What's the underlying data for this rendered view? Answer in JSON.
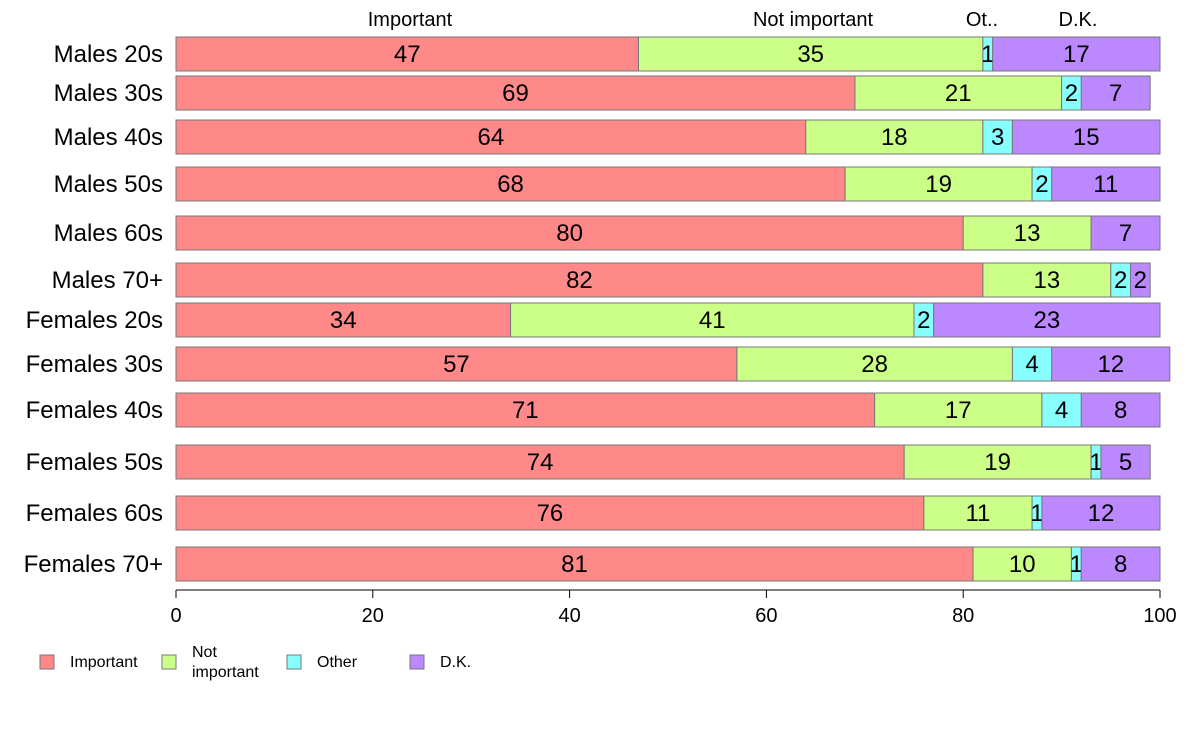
{
  "chart_data": {
    "type": "bar",
    "orientation": "horizontal",
    "stacked": true,
    "categories": [
      "Males 20s",
      "Males 30s",
      "Males 40s",
      "Males 50s",
      "Males 60s",
      "Males 70+",
      "Females 20s",
      "Females 30s",
      "Females 40s",
      "Females 50s",
      "Females 60s",
      "Females 70+"
    ],
    "series": [
      {
        "name": "Important",
        "color": "#ff8888",
        "values": [
          47,
          69,
          64,
          68,
          80,
          82,
          34,
          57,
          71,
          74,
          76,
          81
        ]
      },
      {
        "name": "Not important",
        "color": "#ccff88",
        "values": [
          35,
          21,
          18,
          19,
          13,
          13,
          41,
          28,
          17,
          19,
          11,
          10
        ]
      },
      {
        "name": "Other",
        "color": "#88ffff",
        "values": [
          1,
          2,
          3,
          2,
          0,
          2,
          2,
          4,
          4,
          1,
          1,
          1
        ]
      },
      {
        "name": "D.K.",
        "color": "#bb88ff",
        "values": [
          17,
          7,
          15,
          11,
          7,
          2,
          23,
          12,
          8,
          5,
          12,
          8
        ]
      }
    ],
    "top_labels": [
      "Important",
      "Not important",
      "Ot..",
      "D.K."
    ],
    "legend_labels": [
      "Important",
      "Not\nimportant",
      "Other",
      "D.K."
    ],
    "xlim": [
      0,
      100
    ],
    "xticks": [
      0,
      20,
      40,
      60,
      80,
      100
    ],
    "legend_position": "bottom-left",
    "grid": false
  }
}
